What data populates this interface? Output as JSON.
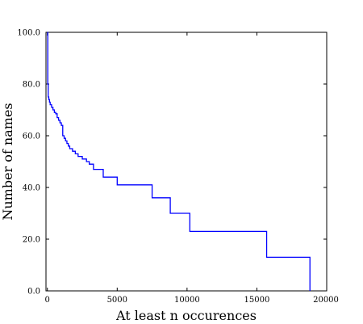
{
  "chart_data": {
    "type": "line",
    "xlabel": "At least n occurences",
    "ylabel": "Number of names",
    "xlim": [
      -100,
      20000
    ],
    "ylim": [
      0,
      100
    ],
    "grid": false,
    "x_ticks": [
      0,
      5000,
      10000,
      15000,
      20000
    ],
    "x_tick_labels": [
      "0",
      "5000",
      "10000",
      "15000",
      "20000"
    ],
    "y_ticks": [
      0,
      20,
      40,
      60,
      80,
      100
    ],
    "y_tick_labels": [
      "0.0",
      "20.0",
      "40.0",
      "60.0",
      "80.0",
      "100.0"
    ],
    "line_color": "#0000ff",
    "step": true,
    "series": [
      {
        "x": [
          0,
          30,
          60,
          100,
          150,
          200,
          300,
          400,
          500,
          600,
          700,
          800,
          900,
          1000,
          1100,
          1200,
          1300,
          1400,
          1500,
          1600,
          1700,
          1800,
          2000,
          2200,
          2500,
          2800,
          3000,
          3300,
          4000,
          5000,
          7500,
          8800,
          10200,
          15700,
          18800
        ],
        "y": [
          100,
          80,
          75,
          74,
          73,
          72,
          71,
          70,
          69,
          68.5,
          67,
          66,
          65,
          64,
          60,
          59,
          58,
          57,
          56,
          55,
          55,
          54,
          53,
          52,
          51,
          50,
          49,
          47,
          44,
          41,
          36,
          30,
          23,
          13,
          0
        ]
      }
    ]
  }
}
